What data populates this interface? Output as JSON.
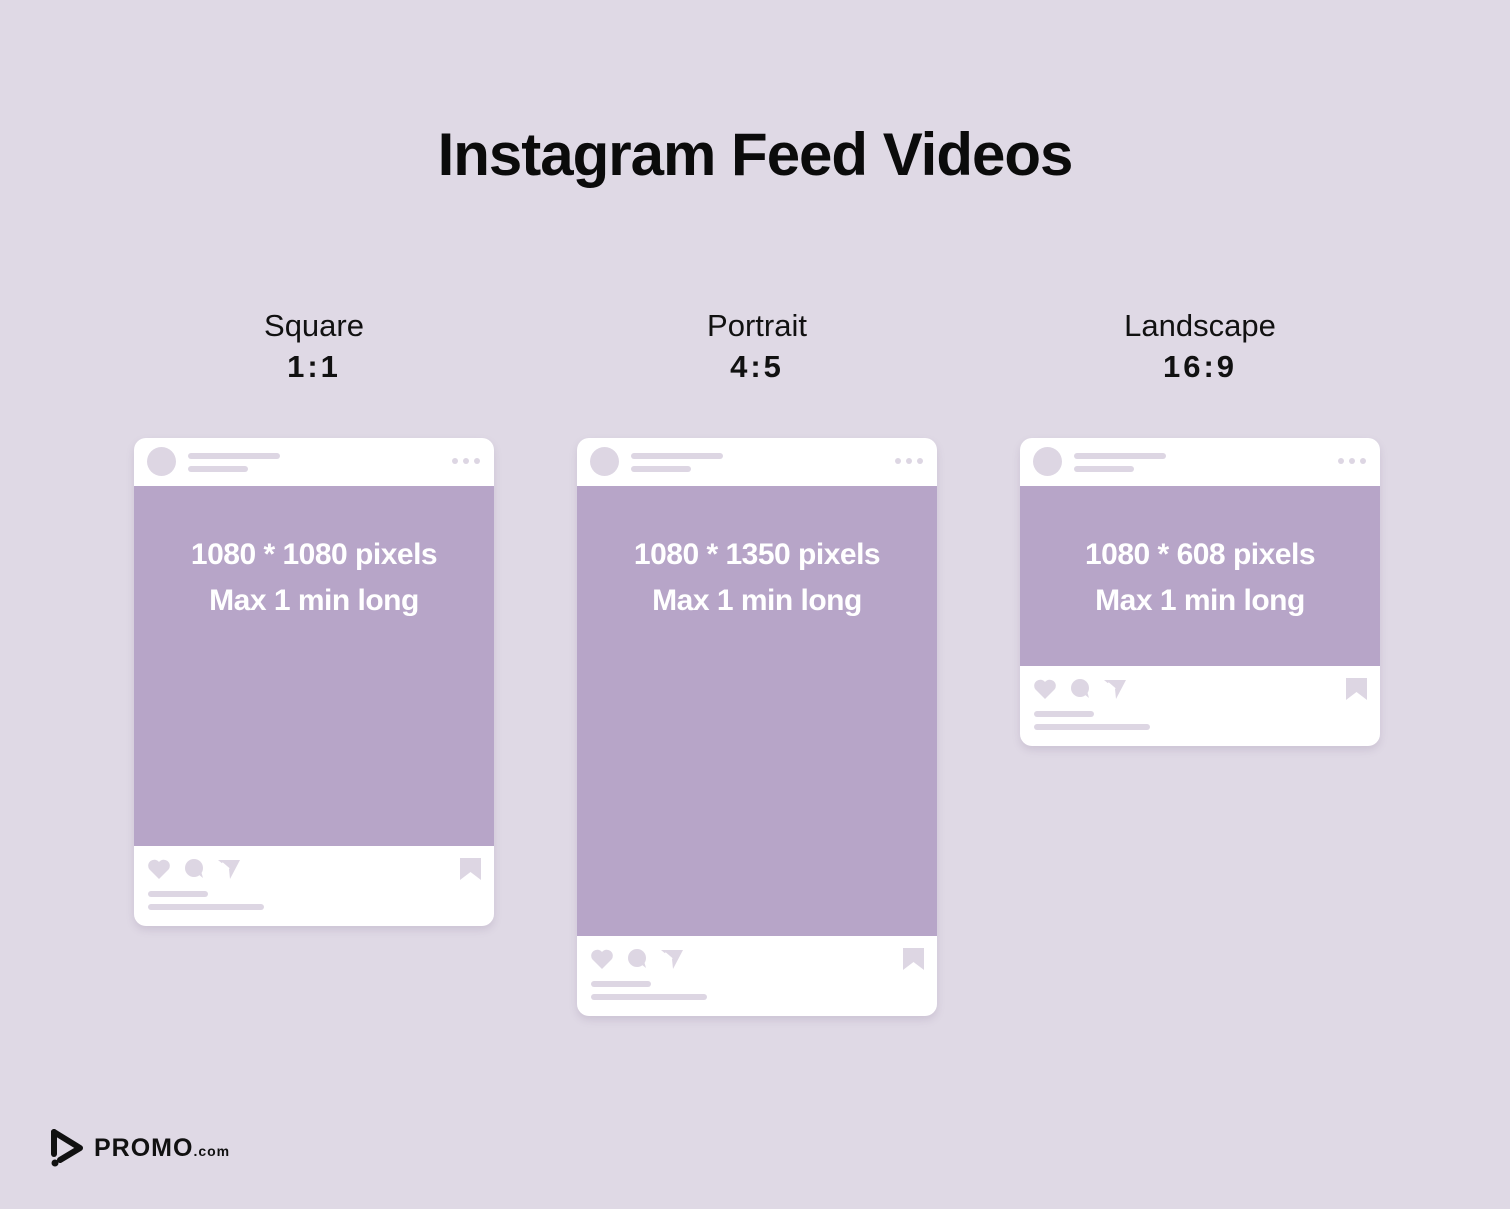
{
  "title": "Instagram Feed Videos",
  "colors": {
    "background": "#dfd9e5",
    "media": "#b7a5c8",
    "placeholder": "#ddd6e3",
    "card": "#ffffff"
  },
  "formats": [
    {
      "name": "Square",
      "ratio": "1:1",
      "size": "1080 * 1080 pixels",
      "duration": "Max 1 min long"
    },
    {
      "name": "Portrait",
      "ratio": "4:5",
      "size": "1080 * 1350 pixels",
      "duration": "Max 1 min long"
    },
    {
      "name": "Landscape",
      "ratio": "16:9",
      "size": "1080 * 608 pixels",
      "duration": "Max 1 min long"
    }
  ],
  "logo": {
    "brand": "PROMO",
    "suffix": ".com"
  }
}
